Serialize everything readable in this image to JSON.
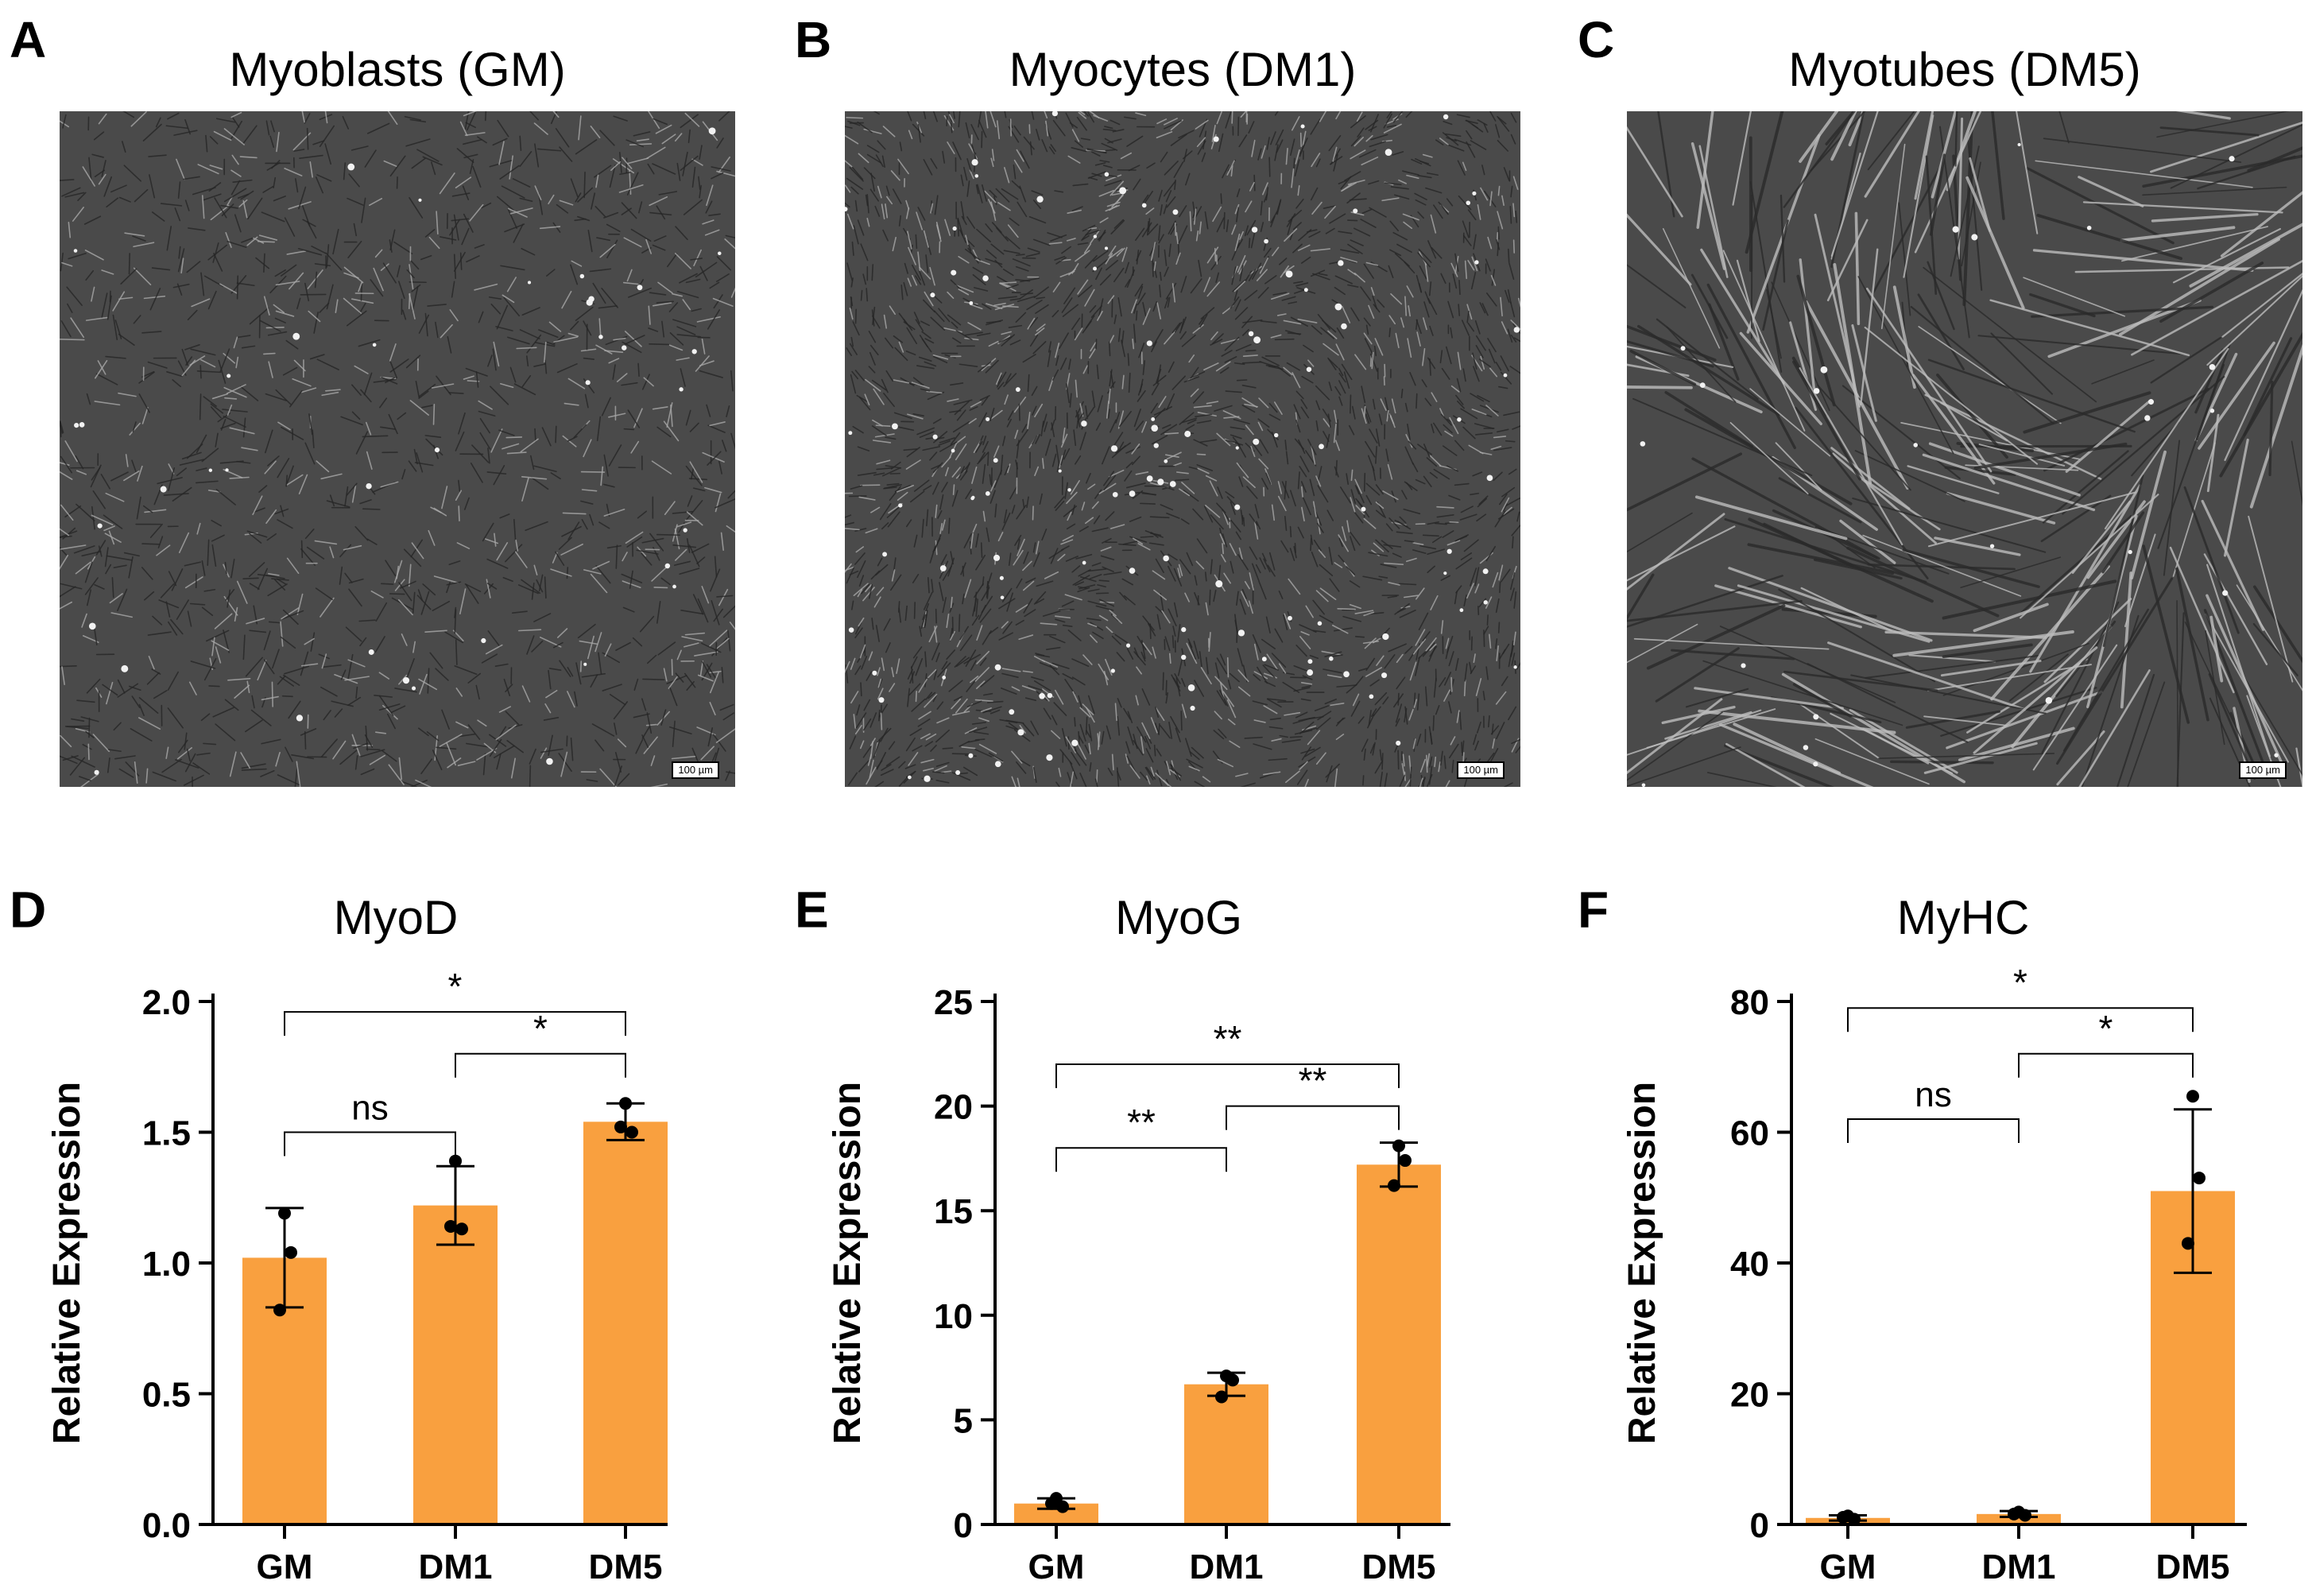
{
  "panels_top": [
    {
      "letter": "A",
      "title": "Myoblasts (GM)",
      "scale_label": "100 µm",
      "cells": "short"
    },
    {
      "letter": "B",
      "title": "Myocytes (DM1)",
      "scale_label": "100 µm",
      "cells": "dense"
    },
    {
      "letter": "C",
      "title": "Myotubes (DM5)",
      "scale_label": "100 µm",
      "cells": "long"
    }
  ],
  "colors": {
    "bar": "#F9A03F",
    "point": "#000000",
    "micro_bg": "#4a4a4a"
  },
  "chart_data": [
    {
      "letter": "D",
      "type": "bar",
      "title": "MyoD",
      "ylabel": "Relative Expression",
      "categories": [
        "GM",
        "DM1",
        "DM5"
      ],
      "values": [
        1.02,
        1.22,
        1.54
      ],
      "errors": [
        0.19,
        0.15,
        0.07
      ],
      "points": [
        [
          1.19,
          1.04,
          0.82
        ],
        [
          1.39,
          1.13,
          1.14
        ],
        [
          1.61,
          1.5,
          1.52
        ]
      ],
      "ylim": [
        0,
        2.0
      ],
      "yticks": [
        "0.0",
        "0.5",
        "1.0",
        "1.5",
        "2.0"
      ],
      "ytick_values": [
        0,
        0.5,
        1.0,
        1.5,
        2.0
      ],
      "significance": [
        {
          "from": 0,
          "to": 1,
          "label": "ns",
          "level": 1.5
        },
        {
          "from": 1,
          "to": 2,
          "label": "*",
          "level": 1.8
        },
        {
          "from": 0,
          "to": 2,
          "label": "*",
          "level": 1.96
        }
      ]
    },
    {
      "letter": "E",
      "type": "bar",
      "title": "MyoG",
      "ylabel": "Relative Expression",
      "categories": [
        "GM",
        "DM1",
        "DM5"
      ],
      "values": [
        1.0,
        6.7,
        17.2
      ],
      "errors": [
        0.25,
        0.55,
        1.05
      ],
      "points": [
        [
          1.25,
          0.85,
          1.0
        ],
        [
          7.1,
          6.9,
          6.1
        ],
        [
          18.1,
          17.4,
          16.2
        ]
      ],
      "ylim": [
        0,
        25
      ],
      "yticks": [
        "0",
        "5",
        "10",
        "15",
        "20",
        "25"
      ],
      "ytick_values": [
        0,
        5,
        10,
        15,
        20,
        25
      ],
      "significance": [
        {
          "from": 0,
          "to": 1,
          "label": "**",
          "level": 18.0
        },
        {
          "from": 1,
          "to": 2,
          "label": "**",
          "level": 20.0
        },
        {
          "from": 0,
          "to": 2,
          "label": "**",
          "level": 22.0
        }
      ]
    },
    {
      "letter": "F",
      "type": "bar",
      "title": "MyHC",
      "ylabel": "Relative Expression",
      "categories": [
        "GM",
        "DM1",
        "DM5"
      ],
      "values": [
        1.0,
        1.6,
        51.0
      ],
      "errors": [
        0.4,
        0.45,
        12.5
      ],
      "points": [
        [
          1.3,
          0.8,
          1.1
        ],
        [
          1.9,
          1.4,
          1.6
        ],
        [
          65.5,
          53.0,
          43.0
        ]
      ],
      "ylim": [
        0,
        80
      ],
      "yticks": [
        "0",
        "20",
        "40",
        "60",
        "80"
      ],
      "ytick_values": [
        0,
        20,
        40,
        60,
        80
      ],
      "significance": [
        {
          "from": 0,
          "to": 1,
          "label": "ns",
          "level": 62.0
        },
        {
          "from": 1,
          "to": 2,
          "label": "*",
          "level": 72.0
        },
        {
          "from": 0,
          "to": 2,
          "label": "*",
          "level": 79.0
        }
      ]
    }
  ]
}
